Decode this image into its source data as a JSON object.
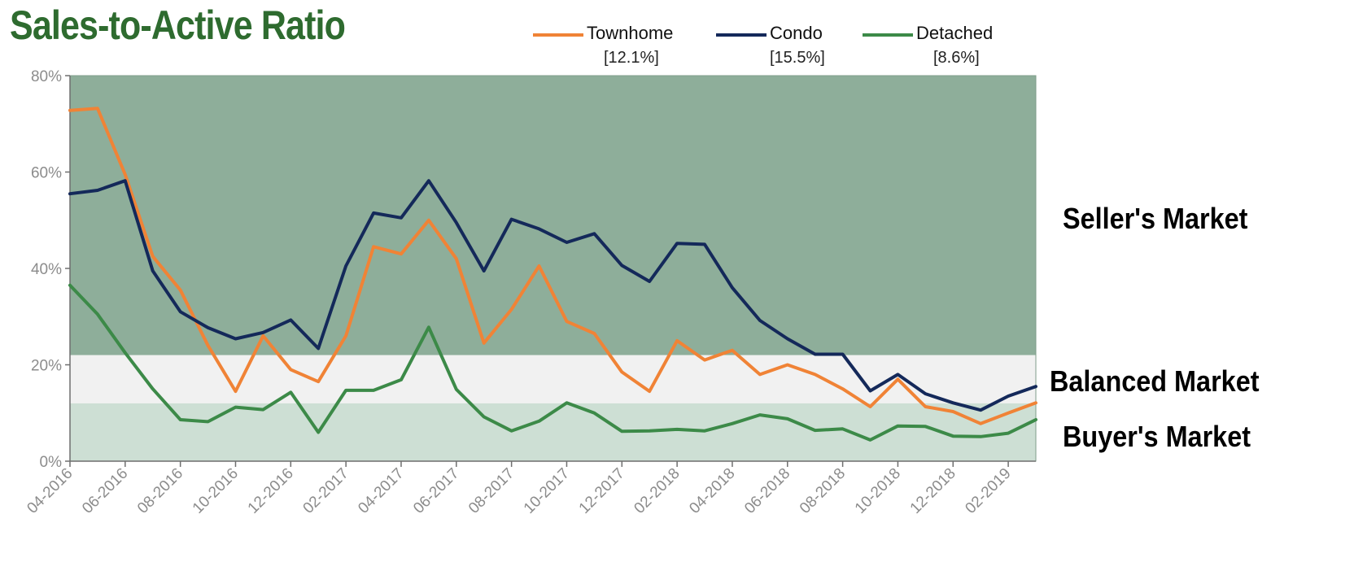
{
  "title": "Sales-to-Active Ratio",
  "colors": {
    "title": "#2e6b2f",
    "seller_zone": "#8eae9a",
    "balanced_zone": "#f1f1f1",
    "buyer_zone": "#cddfd4",
    "axis_text": "#8c8c8c"
  },
  "zones": {
    "seller": {
      "label": "Seller's Market",
      "from": 22,
      "to": 80
    },
    "balanced": {
      "label": "Balanced Market",
      "from": 12,
      "to": 22
    },
    "buyer": {
      "label": "Buyer's Market",
      "from": 0,
      "to": 12
    }
  },
  "chart_data": {
    "type": "line",
    "ylim": [
      0,
      80
    ],
    "yticks": [
      "0%",
      "20%",
      "40%",
      "60%",
      "80%"
    ],
    "ytick_values": [
      0,
      20,
      40,
      60,
      80
    ],
    "xtick_labels": [
      "04-2016",
      "06-2016",
      "08-2016",
      "10-2016",
      "12-2016",
      "02-2017",
      "04-2017",
      "06-2017",
      "08-2017",
      "10-2017",
      "12-2017",
      "02-2018",
      "04-2018",
      "06-2018",
      "08-2018",
      "10-2018",
      "12-2018",
      "02-2019"
    ],
    "x": [
      "04-2016",
      "05-2016",
      "06-2016",
      "07-2016",
      "08-2016",
      "09-2016",
      "10-2016",
      "11-2016",
      "12-2016",
      "01-2017",
      "02-2017",
      "03-2017",
      "04-2017",
      "05-2017",
      "06-2017",
      "07-2017",
      "08-2017",
      "09-2017",
      "10-2017",
      "11-2017",
      "12-2017",
      "01-2018",
      "02-2018",
      "03-2018",
      "04-2018",
      "05-2018",
      "06-2018",
      "07-2018",
      "08-2018",
      "09-2018",
      "10-2018",
      "11-2018",
      "12-2018",
      "01-2019",
      "02-2019",
      "03-2019"
    ],
    "series": [
      {
        "name": "Townhome",
        "current": "[12.1%]",
        "color": "#f08336",
        "values": [
          72.8,
          73.2,
          59.5,
          42.5,
          35.5,
          24.0,
          14.5,
          26.0,
          19.0,
          16.5,
          26.0,
          44.5,
          43.0,
          50.0,
          42.0,
          24.5,
          31.5,
          40.5,
          29.0,
          26.5,
          18.5,
          14.5,
          25.0,
          21.0,
          23.0,
          18.0,
          20.0,
          18.0,
          15.0,
          11.3,
          17.0,
          11.3,
          10.3,
          7.8,
          10.0,
          12.1
        ]
      },
      {
        "name": "Condo",
        "current": "[15.5%]",
        "color": "#14295a",
        "values": [
          55.5,
          56.2,
          58.2,
          39.5,
          31.0,
          27.7,
          25.4,
          26.7,
          29.3,
          23.4,
          40.5,
          51.5,
          50.5,
          58.2,
          49.5,
          39.5,
          50.2,
          48.2,
          45.4,
          47.2,
          40.6,
          37.3,
          45.2,
          45.0,
          36.0,
          29.2,
          25.4,
          22.2,
          22.2,
          14.6,
          18.0,
          14.0,
          12.1,
          10.6,
          13.5,
          15.5
        ]
      },
      {
        "name": "Detached",
        "current": "[8.6%]",
        "color": "#3c8a48",
        "values": [
          36.5,
          30.5,
          22.5,
          15.0,
          8.6,
          8.2,
          11.2,
          10.7,
          14.3,
          6.0,
          14.7,
          14.7,
          16.9,
          27.8,
          14.9,
          9.2,
          6.3,
          8.3,
          12.1,
          10.0,
          6.2,
          6.3,
          6.6,
          6.3,
          7.8,
          9.6,
          8.8,
          6.4,
          6.7,
          4.4,
          7.3,
          7.2,
          5.2,
          5.1,
          5.8,
          8.6
        ]
      }
    ]
  }
}
